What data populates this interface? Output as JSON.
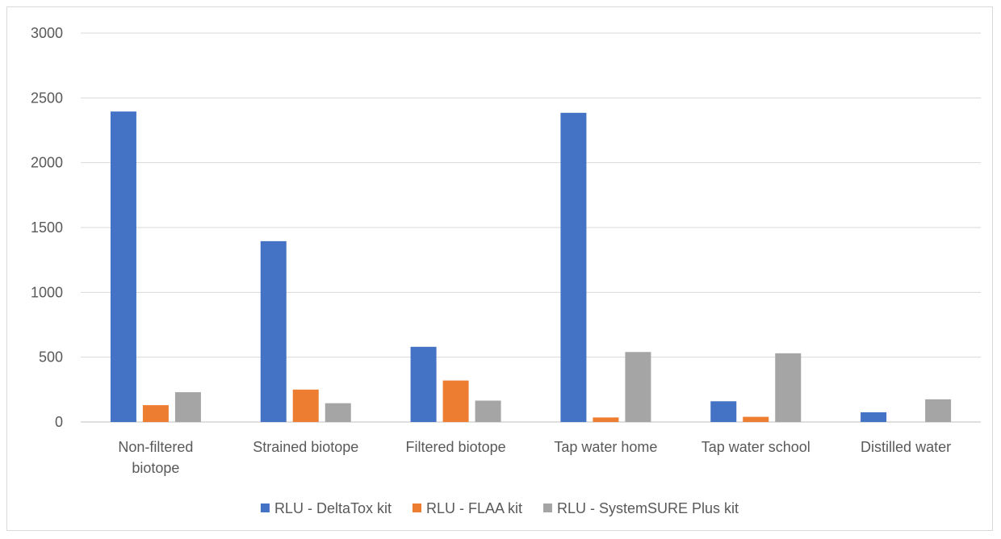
{
  "chart_data": {
    "type": "bar",
    "title": "",
    "xlabel": "",
    "ylabel": "",
    "ylim": [
      0,
      3000
    ],
    "yticks": [
      0,
      500,
      1000,
      1500,
      2000,
      2500,
      3000
    ],
    "grid": true,
    "legend_position": "bottom",
    "categories": [
      [
        "Non-filtered",
        "biotope"
      ],
      [
        "Strained biotope"
      ],
      [
        "Filtered biotope"
      ],
      [
        "Tap water home"
      ],
      [
        "Tap water school"
      ],
      [
        "Distilled water"
      ]
    ],
    "series": [
      {
        "name": "RLU - DeltaTox kit",
        "color": "#4472c4",
        "values": [
          2395,
          1395,
          580,
          2385,
          160,
          75
        ]
      },
      {
        "name": "RLU - FLAA kit",
        "color": "#ed7d31",
        "values": [
          130,
          250,
          320,
          35,
          40,
          0
        ]
      },
      {
        "name": "RLU - SystemSURE Plus kit",
        "color": "#a5a5a5",
        "values": [
          230,
          145,
          165,
          540,
          530,
          175
        ]
      }
    ]
  }
}
